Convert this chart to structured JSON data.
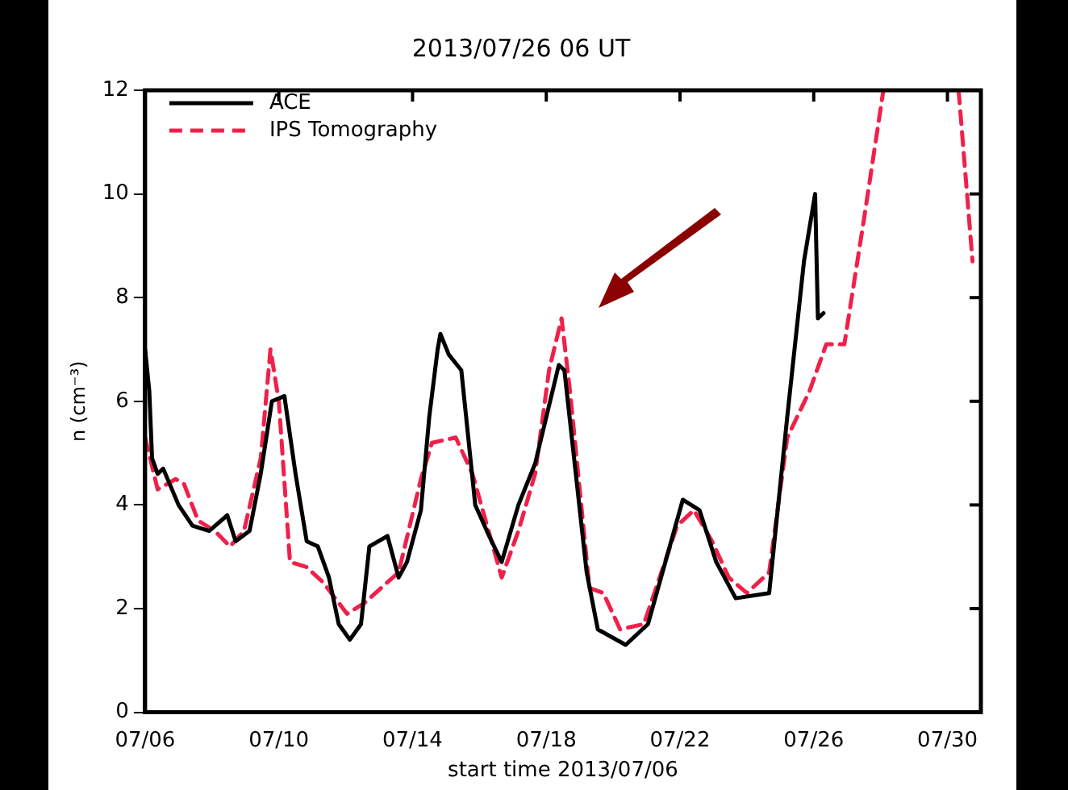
{
  "chart_data": {
    "type": "line",
    "title": "2013/07/26 06 UT",
    "xlabel": "start time 2013/07/06",
    "ylabel": "n (cm⁻³)",
    "xlim": [
      "2013-07-06",
      "2013-07-31"
    ],
    "xticks": [
      {
        "value": "2013-07-06",
        "label": "07/06"
      },
      {
        "value": "2013-07-10",
        "label": "07/10"
      },
      {
        "value": "2013-07-14",
        "label": "07/14"
      },
      {
        "value": "2013-07-18",
        "label": "07/18"
      },
      {
        "value": "2013-07-22",
        "label": "07/22"
      },
      {
        "value": "2013-07-26",
        "label": "07/26"
      },
      {
        "value": "2013-07-30",
        "label": "07/30"
      }
    ],
    "ylim": [
      0,
      12
    ],
    "yticks": [
      0,
      2,
      4,
      6,
      8,
      10,
      12
    ],
    "grid": false,
    "legend": "top left",
    "marker": "none",
    "series": [
      {
        "name": "ACE",
        "color": "#000000",
        "line_style": "solid",
        "x": [
          "2013-07-06T00:00",
          "2013-07-06T03:00",
          "2013-07-06T05:00",
          "2013-07-06T09:00",
          "2013-07-06T13:00",
          "2013-07-07T00:00",
          "2013-07-07T10:00",
          "2013-07-07T22:00",
          "2013-07-08T11:00",
          "2013-07-08T17:00",
          "2013-07-09T03:00",
          "2013-07-09T11:00",
          "2013-07-09T19:00",
          "2013-07-10T04:00",
          "2013-07-10T12:00",
          "2013-07-10T20:00",
          "2013-07-11T04:00",
          "2013-07-11T12:00",
          "2013-07-11T19:00",
          "2013-07-12T03:00",
          "2013-07-12T11:00",
          "2013-07-12T17:00",
          "2013-07-13T06:00",
          "2013-07-13T14:00",
          "2013-07-13T20:00",
          "2013-07-14T06:00",
          "2013-07-14T12:00",
          "2013-07-14T18:00",
          "2013-07-14T20:00",
          "2013-07-15T02:00",
          "2013-07-15T11:00",
          "2013-07-15T21:00",
          "2013-07-16T07:00",
          "2013-07-16T16:00",
          "2013-07-17T04:00",
          "2013-07-17T16:00",
          "2013-07-18T09:00",
          "2013-07-18T13:00",
          "2013-07-19T05:00",
          "2013-07-19T13:00",
          "2013-07-20T09:00",
          "2013-07-21T01:00",
          "2013-07-22T02:00",
          "2013-07-22T14:00",
          "2013-07-23T02:00",
          "2013-07-23T16:00",
          "2013-07-24T16:00",
          "2013-07-25T05:00",
          "2013-07-25T17:00",
          "2013-07-26T01:00",
          "2013-07-26T03:00",
          "2013-07-26T07:00"
        ],
        "values": [
          7.0,
          6.2,
          4.9,
          4.6,
          4.7,
          4.0,
          3.6,
          3.5,
          3.8,
          3.3,
          3.5,
          4.6,
          6.0,
          6.1,
          4.6,
          3.3,
          3.2,
          2.6,
          1.7,
          1.4,
          1.7,
          3.2,
          3.4,
          2.6,
          2.9,
          3.9,
          5.7,
          7.0,
          7.3,
          6.9,
          6.6,
          4.0,
          3.4,
          2.9,
          4.0,
          4.8,
          6.7,
          6.6,
          2.7,
          1.6,
          1.3,
          1.7,
          4.1,
          3.9,
          2.9,
          2.2,
          2.3,
          5.7,
          8.7,
          10.0,
          7.6,
          7.7
        ]
      },
      {
        "name": "IPS Tomography",
        "color": "#f0204a",
        "line_style": "dashed",
        "x": [
          "2013-07-06T00:00",
          "2013-07-06T09:00",
          "2013-07-06T22:00",
          "2013-07-07T04:00",
          "2013-07-07T14:00",
          "2013-07-08T02:00",
          "2013-07-08T13:00",
          "2013-07-08T23:00",
          "2013-07-09T11:00",
          "2013-07-09T18:00",
          "2013-07-10T00:00",
          "2013-07-10T08:00",
          "2013-07-10T20:00",
          "2013-07-11T08:00",
          "2013-07-12T01:00",
          "2013-07-12T13:00",
          "2013-07-13T14:00",
          "2013-07-14T06:00",
          "2013-07-14T14:00",
          "2013-07-15T07:00",
          "2013-07-15T19:00",
          "2013-07-16T16:00",
          "2013-07-17T04:00",
          "2013-07-17T16:00",
          "2013-07-18T02:00",
          "2013-07-18T11:00",
          "2013-07-18T17:00",
          "2013-07-19T07:00",
          "2013-07-19T17:00",
          "2013-07-20T05:00",
          "2013-07-20T22:00",
          "2013-07-21T22:00",
          "2013-07-22T10:00",
          "2013-07-22T23:00",
          "2013-07-23T11:00",
          "2013-07-24T00:00",
          "2013-07-24T16:00",
          "2013-07-25T05:00",
          "2013-07-25T21:00",
          "2013-07-26T09:00",
          "2013-07-26T22:00",
          "2013-07-27T12:00",
          "2013-07-28T02:00",
          "2013-07-29T00:00",
          "2013-07-30T08:00",
          "2013-07-30T18:00"
        ],
        "values": [
          5.3,
          4.3,
          4.5,
          4.4,
          3.7,
          3.5,
          3.2,
          3.5,
          4.9,
          7.0,
          6.0,
          2.9,
          2.8,
          2.5,
          1.9,
          2.1,
          2.7,
          4.5,
          5.2,
          5.3,
          4.6,
          2.6,
          3.5,
          4.6,
          6.6,
          7.6,
          6.2,
          2.4,
          2.3,
          1.6,
          1.7,
          3.6,
          3.9,
          3.3,
          2.6,
          2.3,
          2.7,
          5.3,
          6.2,
          7.1,
          7.1,
          9.5,
          12,
          null,
          12,
          8.7
        ]
      }
    ]
  }
}
